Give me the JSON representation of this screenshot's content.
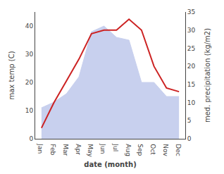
{
  "chart_data": {
    "type": "line",
    "xlabel": "date (month)",
    "ylabel": "max temp (C)",
    "y2label": "med. precipitation (kg/m2)",
    "categories": [
      "Jan",
      "Feb",
      "Mar",
      "Apr",
      "May",
      "Jun",
      "Jul",
      "Aug",
      "Sep",
      "Oct",
      "Nov",
      "Dec"
    ],
    "series": [
      {
        "name": "max temp (C)",
        "type": "area",
        "color": "#c8d0ee",
        "axis": "y",
        "values": [
          11,
          13,
          16,
          22,
          38,
          40,
          36,
          35,
          20,
          20,
          15,
          15
        ]
      },
      {
        "name": "med. precipitation (kg/m2)",
        "type": "line",
        "color": "#cc2222",
        "axis": "y2",
        "values": [
          3,
          10,
          16,
          22,
          29,
          30,
          30,
          33,
          30,
          20,
          14,
          13
        ]
      }
    ],
    "ylim": [
      0,
      45
    ],
    "yticks": [
      0,
      10,
      20,
      30,
      40
    ],
    "y2lim": [
      0,
      35
    ],
    "y2ticks": [
      0,
      5,
      10,
      15,
      20,
      25,
      30,
      35
    ],
    "grid": false
  }
}
